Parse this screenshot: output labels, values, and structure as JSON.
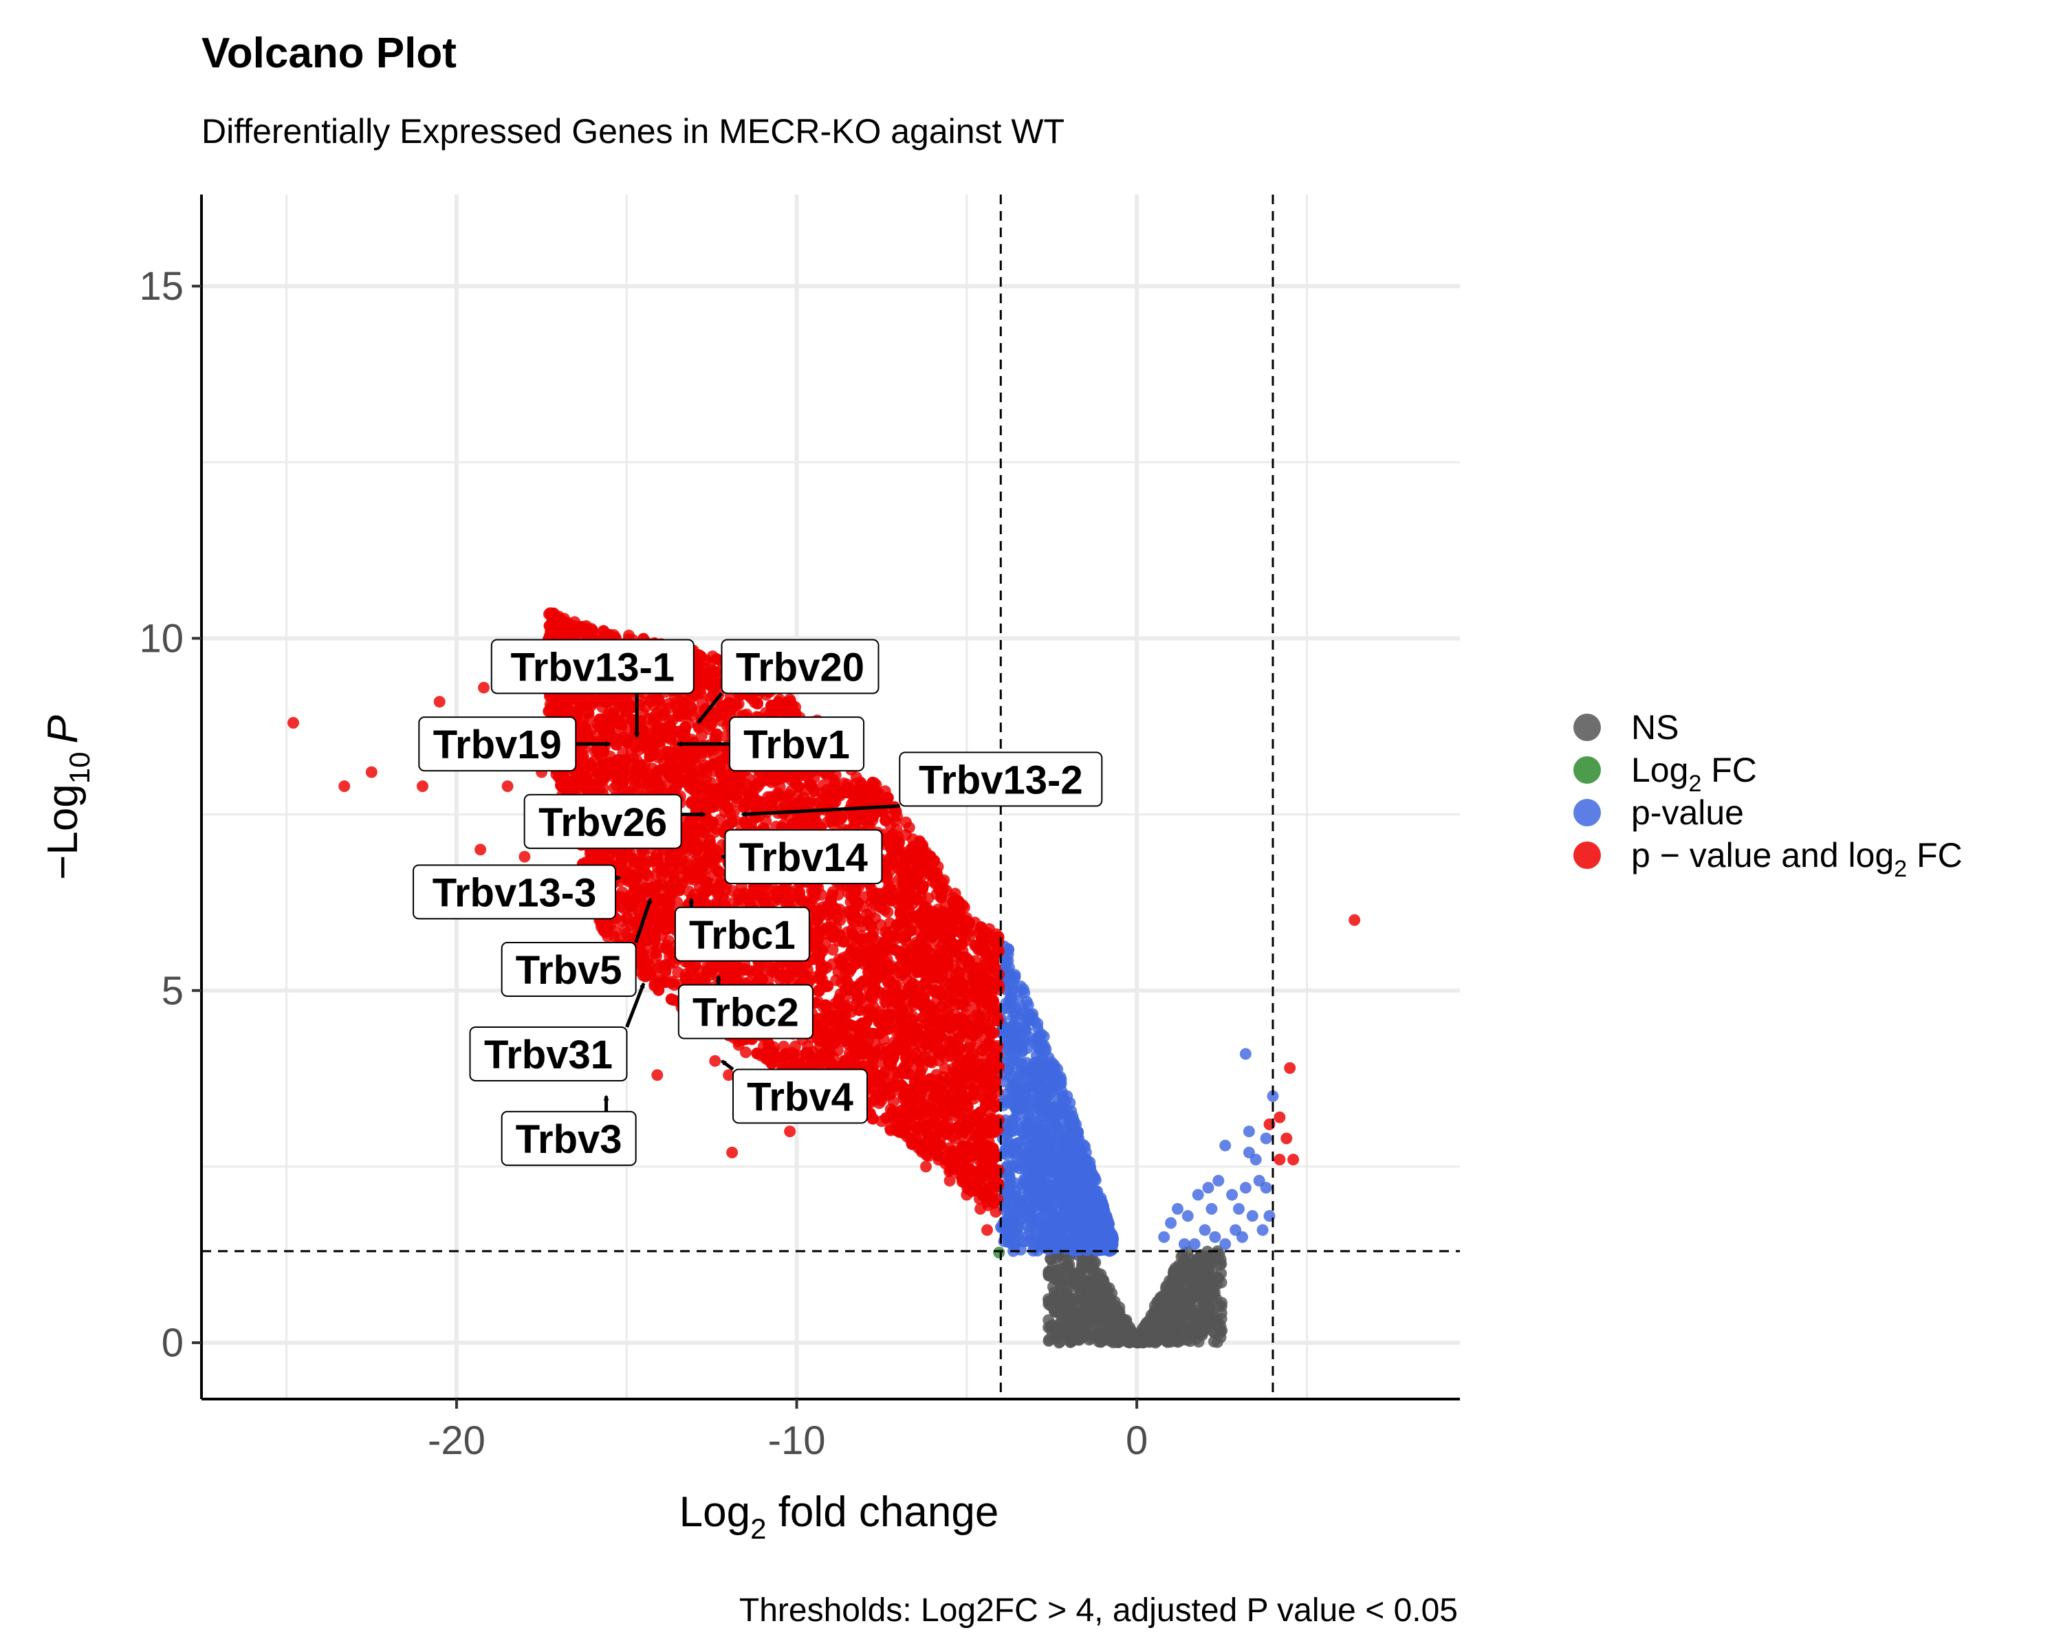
{
  "chart_data": {
    "type": "scatter",
    "title": "Volcano Plot",
    "subtitle": "Differentially Expressed Genes in MECR-KO against WT",
    "xlabel": {
      "main": "Log",
      "sub": "2",
      "rest": " fold change"
    },
    "ylabel": {
      "prefix": "−Log",
      "sub": "10",
      "italic": "P"
    },
    "caption": "Thresholds: Log2FC > 4, adjusted P value < 0.05",
    "xlim": [
      -27.5,
      9.5
    ],
    "ylim": [
      -0.8,
      16.3
    ],
    "xticks": [
      -20,
      -10,
      0
    ],
    "xtick_labels": [
      "-20",
      "-10",
      "0"
    ],
    "yticks": [
      0,
      5,
      10,
      15
    ],
    "ytick_labels": [
      "0",
      "5",
      "10",
      "15"
    ],
    "grid": true,
    "legend_position": "right",
    "thresholds": {
      "log2fc": [
        -4,
        4
      ],
      "neg_log10_p": 1.3
    },
    "colors": {
      "NS": "#555555",
      "log2fc": "#2e8b2e",
      "pvalue": "#4169e1",
      "both": "#ee0000"
    },
    "legend": [
      {
        "key": "NS",
        "color": "#555555",
        "label": "NS",
        "sub": "",
        "rest": ""
      },
      {
        "key": "log2fc",
        "color": "#2e8b2e",
        "label": "Log",
        "sub": "2",
        "rest": " FC"
      },
      {
        "key": "pvalue",
        "color": "#4169e1",
        "label": "p-value",
        "sub": "",
        "rest": ""
      },
      {
        "key": "both",
        "color": "#ee0000",
        "label": "p − value and log",
        "sub": "2",
        "rest": " FC"
      }
    ],
    "red_band": [
      {
        "x": -17.3,
        "ymin": 8.4,
        "ymax": 10.4
      },
      {
        "x": -15.5,
        "ymin": 5.5,
        "ymax": 10.1
      },
      {
        "x": -13.5,
        "ymin": 4.8,
        "ymax": 9.9
      },
      {
        "x": -11.5,
        "ymin": 4.1,
        "ymax": 9.6
      },
      {
        "x": -9.5,
        "ymin": 3.6,
        "ymax": 8.9
      },
      {
        "x": -7.5,
        "ymin": 3.1,
        "ymax": 7.9
      },
      {
        "x": -6.0,
        "ymin": 2.6,
        "ymax": 6.9
      },
      {
        "x": -4.8,
        "ymin": 2.1,
        "ymax": 6.0
      },
      {
        "x": -4.05,
        "ymin": 1.8,
        "ymax": 5.8
      }
    ],
    "blue_band": [
      {
        "x": -4.0,
        "ymin": 1.3,
        "ymax": 5.9
      },
      {
        "x": -3.3,
        "ymin": 1.3,
        "ymax": 5.0
      },
      {
        "x": -2.5,
        "ymin": 1.3,
        "ymax": 4.1
      },
      {
        "x": -1.8,
        "ymin": 1.3,
        "ymax": 3.2
      },
      {
        "x": -1.2,
        "ymin": 1.3,
        "ymax": 2.3
      },
      {
        "x": -0.7,
        "ymin": 1.3,
        "ymax": 1.5
      }
    ],
    "red_outliers": [
      [
        -24.8,
        8.8
      ],
      [
        -23.3,
        7.9
      ],
      [
        -22.5,
        8.1
      ],
      [
        -21.0,
        7.9
      ],
      [
        -20.5,
        9.1
      ],
      [
        -19.2,
        9.3
      ],
      [
        -19.3,
        7.0
      ],
      [
        -18.5,
        7.9
      ],
      [
        -18.7,
        8.5
      ],
      [
        -17.8,
        7.3
      ],
      [
        -17.5,
        8.1
      ],
      [
        -18.0,
        6.9
      ],
      [
        -16.9,
        7.7
      ],
      [
        -16.3,
        6.6
      ],
      [
        -14.1,
        3.8
      ],
      [
        -11.9,
        2.7
      ],
      [
        -12.4,
        4.0
      ],
      [
        -12.0,
        3.8
      ],
      [
        -10.8,
        3.2
      ],
      [
        -10.2,
        3.0
      ],
      [
        -9.0,
        3.8
      ],
      [
        -8.5,
        3.3
      ],
      [
        -7.9,
        3.4
      ],
      [
        -7.2,
        3.2
      ],
      [
        -6.5,
        2.9
      ],
      [
        -6.2,
        2.5
      ],
      [
        -5.5,
        2.3
      ],
      [
        -5.0,
        2.1
      ],
      [
        -4.6,
        1.9
      ],
      [
        -4.4,
        1.6
      ],
      [
        -15.8,
        6.0
      ],
      [
        -16.5,
        7.2
      ],
      [
        -14.8,
        5.5
      ],
      [
        -13.6,
        5.4
      ],
      [
        -10.9,
        3.6
      ],
      [
        6.4,
        6.0
      ],
      [
        4.5,
        3.9
      ],
      [
        4.2,
        3.2
      ],
      [
        4.2,
        2.6
      ],
      [
        4.4,
        2.9
      ],
      [
        4.6,
        2.6
      ],
      [
        3.9,
        3.1
      ]
    ],
    "blue_right": [
      [
        3.2,
        4.1
      ],
      [
        4.0,
        3.5
      ],
      [
        3.8,
        2.9
      ],
      [
        3.3,
        3.0
      ],
      [
        2.6,
        2.8
      ],
      [
        2.4,
        2.3
      ],
      [
        3.5,
        2.6
      ],
      [
        3.2,
        2.2
      ],
      [
        3.0,
        1.9
      ],
      [
        2.8,
        2.1
      ],
      [
        2.1,
        2.2
      ],
      [
        1.8,
        2.1
      ],
      [
        1.2,
        1.9
      ],
      [
        1.0,
        1.7
      ],
      [
        1.5,
        1.8
      ],
      [
        2.3,
        1.5
      ],
      [
        2.0,
        1.6
      ],
      [
        3.4,
        1.8
      ],
      [
        3.7,
        1.6
      ],
      [
        3.9,
        1.8
      ],
      [
        3.1,
        1.5
      ],
      [
        2.6,
        1.4
      ],
      [
        1.4,
        1.4
      ],
      [
        0.8,
        1.5
      ],
      [
        3.6,
        2.3
      ],
      [
        2.9,
        1.6
      ],
      [
        1.7,
        1.4
      ],
      [
        2.2,
        1.9
      ],
      [
        3.3,
        2.7
      ],
      [
        3.8,
        2.2
      ]
    ],
    "green_points": [
      [
        -4.05,
        1.28
      ]
    ],
    "gene_labels": [
      {
        "name": "Trbv13-1",
        "px": -14.7,
        "py": 8.6,
        "lx": -16.0,
        "ly": 9.6
      },
      {
        "name": "Trbv20",
        "px": -12.9,
        "py": 8.8,
        "lx": -9.9,
        "ly": 9.6
      },
      {
        "name": "Trbv19",
        "px": -15.5,
        "py": 8.5,
        "lx": -18.8,
        "ly": 8.5
      },
      {
        "name": "Trbv1",
        "px": -13.5,
        "py": 8.5,
        "lx": -10.0,
        "ly": 8.5
      },
      {
        "name": "Trbv13-2",
        "px": -11.6,
        "py": 7.5,
        "lx": -4.0,
        "ly": 8.0
      },
      {
        "name": "Trbv26",
        "px": -12.7,
        "py": 7.5,
        "lx": -15.7,
        "ly": 7.4
      },
      {
        "name": "Trbv14",
        "px": -12.2,
        "py": 6.9,
        "lx": -9.8,
        "ly": 6.9
      },
      {
        "name": "Trbv13-3",
        "px": -15.2,
        "py": 6.6,
        "lx": -18.3,
        "ly": 6.4
      },
      {
        "name": "Trbc1",
        "px": -13.1,
        "py": 6.3,
        "lx": -11.6,
        "ly": 5.8
      },
      {
        "name": "Trbv5",
        "px": -14.3,
        "py": 6.3,
        "lx": -16.7,
        "ly": 5.3
      },
      {
        "name": "Trbc2",
        "px": -12.3,
        "py": 5.2,
        "lx": -11.5,
        "ly": 4.7
      },
      {
        "name": "Trbv31",
        "px": -14.5,
        "py": 5.1,
        "lx": -17.3,
        "ly": 4.1
      },
      {
        "name": "Trbv4",
        "px": -12.2,
        "py": 4.0,
        "lx": -9.9,
        "ly": 3.5
      },
      {
        "name": "Trbv3",
        "px": -15.6,
        "py": 3.5,
        "lx": -16.7,
        "ly": 2.9
      }
    ]
  }
}
